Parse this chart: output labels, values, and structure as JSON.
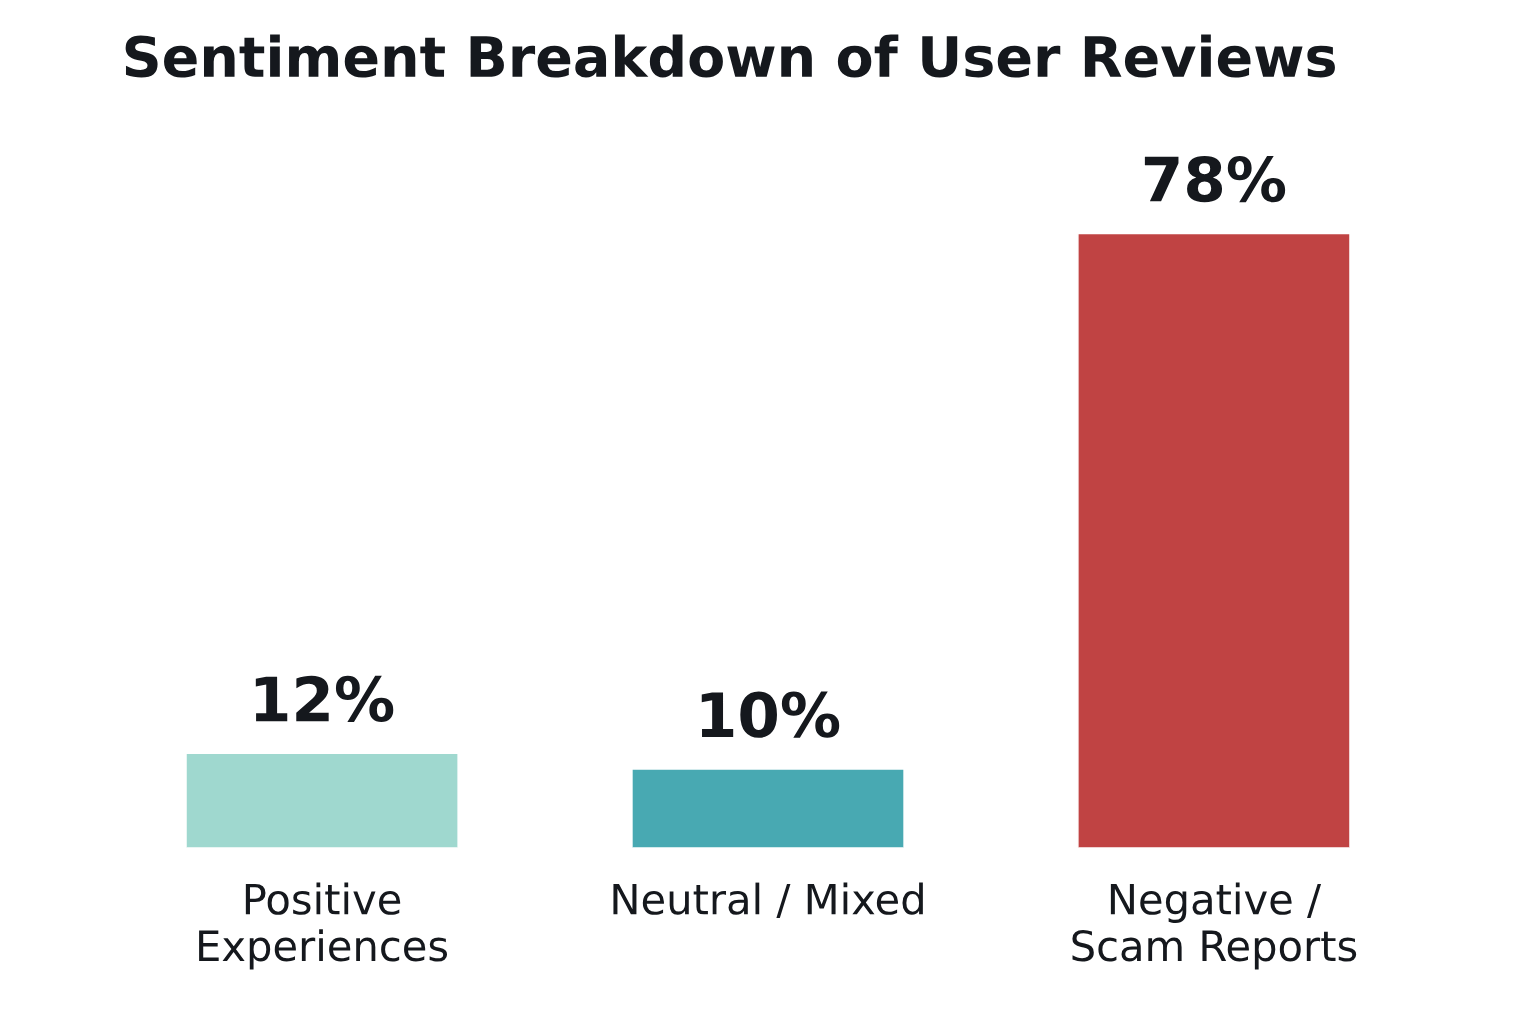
{
  "chart_data": {
    "type": "bar",
    "title": "Sentiment Breakdown of User Reviews",
    "categories": [
      "Positive\nExperiences",
      "Neutral / Mixed",
      "Negative /\nScam Reports"
    ],
    "values": [
      12,
      10,
      78
    ],
    "colors": [
      "#9fd8cf",
      "#48a9b2",
      "#c04343"
    ],
    "value_labels": [
      "12%",
      "10%",
      "78%"
    ],
    "grid": false,
    "legend": false
  }
}
